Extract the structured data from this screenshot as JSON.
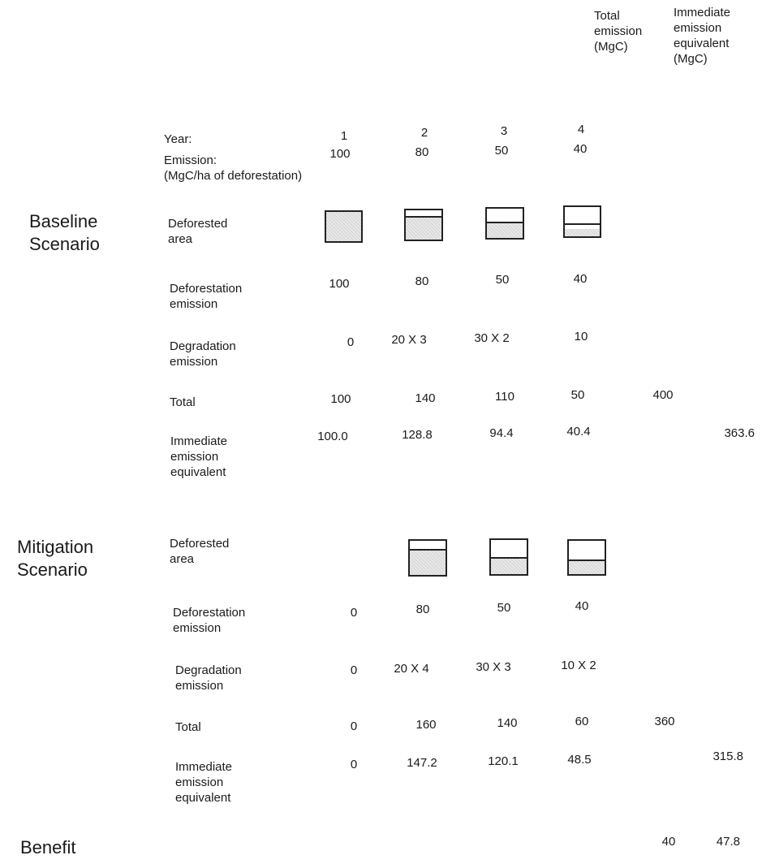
{
  "columns": {
    "total_header": "Total\nemission\n(MgC)",
    "immediate_header": "Immediate\nemission\nequivalent\n(MgC)"
  },
  "header_rows": {
    "year_label": "Year:",
    "years": [
      "1",
      "2",
      "3",
      "4"
    ],
    "emission_label": "Emission:\n(MgC/ha of deforestation)",
    "emissions": [
      "100",
      "80",
      "50",
      "40"
    ]
  },
  "baseline": {
    "title": "Baseline\nScenario",
    "deforested_label": "Deforested\narea",
    "deforestation_label": "Deforestation\nemission",
    "deforestation": [
      "100",
      "80",
      "50",
      "40"
    ],
    "degradation_label": "Degradation\nemission",
    "degradation": [
      "0",
      "20 X 3",
      "30 X 2",
      "10"
    ],
    "total_label": "Total",
    "totals": [
      "100",
      "140",
      "110",
      "50"
    ],
    "total_sum": "400",
    "immediate_label": "Immediate\nemission\nequivalent",
    "immediate": [
      "100.0",
      "128.8",
      "94.4",
      "40.4"
    ],
    "immediate_sum": "363.6"
  },
  "mitigation": {
    "title": "Mitigation\nScenario",
    "deforested_label": "Deforested\narea",
    "deforestation_label": "Deforestation\nemission",
    "deforestation": [
      "0",
      "80",
      "50",
      "40"
    ],
    "degradation_label": "Degradation\nemission",
    "degradation": [
      "0",
      "20 X 4",
      "30 X 3",
      "10 X 2"
    ],
    "total_label": "Total",
    "totals": [
      "0",
      "160",
      "140",
      "60"
    ],
    "total_sum": "360",
    "immediate_label": "Immediate\nemission\nequivalent",
    "immediate": [
      "0",
      "147.2",
      "120.1",
      "48.5"
    ],
    "immediate_sum": "315.8"
  },
  "benefit": {
    "title": "Benefit",
    "total": "40",
    "immediate": "47.8"
  }
}
